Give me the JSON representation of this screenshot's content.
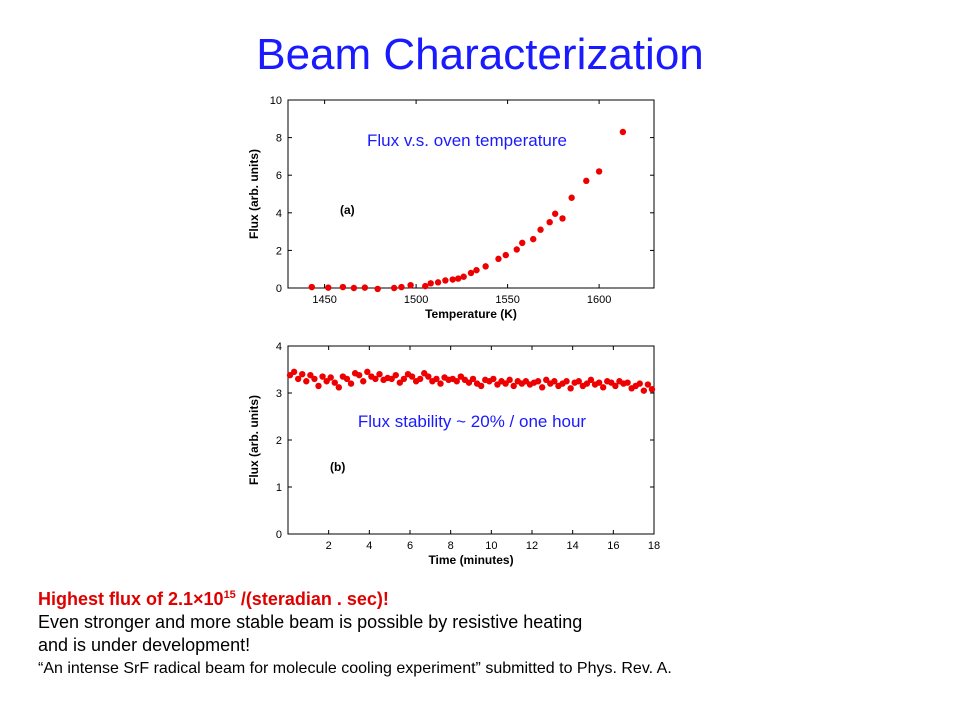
{
  "slide": {
    "title": "Beam Characterization"
  },
  "chart_data": [
    {
      "type": "scatter",
      "panel_label": "(a)",
      "annotation": "Flux v.s. oven temperature",
      "xlabel": "Temperature (K)",
      "ylabel": "Flux (arb. units)",
      "xlim": [
        1430,
        1630
      ],
      "ylim": [
        0,
        10
      ],
      "xticks": [
        1450,
        1500,
        1550,
        1600
      ],
      "yticks": [
        0,
        2,
        4,
        6,
        8,
        10
      ],
      "marker_color": "#ee0000",
      "points": [
        [
          1443,
          0.05
        ],
        [
          1452,
          0.02
        ],
        [
          1460,
          0.05
        ],
        [
          1466,
          0.0
        ],
        [
          1472,
          0.02
        ],
        [
          1479,
          -0.05
        ],
        [
          1488,
          0.0
        ],
        [
          1492,
          0.05
        ],
        [
          1497,
          0.15
        ],
        [
          1505,
          0.1
        ],
        [
          1508,
          0.25
        ],
        [
          1512,
          0.3
        ],
        [
          1516,
          0.4
        ],
        [
          1520,
          0.45
        ],
        [
          1523,
          0.5
        ],
        [
          1526,
          0.6
        ],
        [
          1530,
          0.8
        ],
        [
          1533,
          0.95
        ],
        [
          1538,
          1.15
        ],
        [
          1545,
          1.55
        ],
        [
          1549,
          1.75
        ],
        [
          1555,
          2.05
        ],
        [
          1558,
          2.4
        ],
        [
          1564,
          2.6
        ],
        [
          1568,
          3.1
        ],
        [
          1573,
          3.5
        ],
        [
          1576,
          3.95
        ],
        [
          1580,
          3.7
        ],
        [
          1585,
          4.8
        ],
        [
          1593,
          5.7
        ],
        [
          1600,
          6.2
        ],
        [
          1613,
          8.3
        ]
      ]
    },
    {
      "type": "scatter",
      "panel_label": "(b)",
      "annotation": "Flux stability ~ 20% / one hour",
      "xlabel": "Time (minutes)",
      "ylabel": "Flux (arb. units)",
      "xlim": [
        0,
        18
      ],
      "ylim": [
        0,
        4
      ],
      "xticks": [
        2,
        4,
        6,
        8,
        10,
        12,
        14,
        16,
        18
      ],
      "yticks": [
        0,
        1,
        2,
        3,
        4
      ],
      "marker_color": "#ee0000",
      "points": [
        [
          0.1,
          3.38
        ],
        [
          0.3,
          3.45
        ],
        [
          0.5,
          3.3
        ],
        [
          0.7,
          3.4
        ],
        [
          0.9,
          3.25
        ],
        [
          1.1,
          3.38
        ],
        [
          1.3,
          3.3
        ],
        [
          1.5,
          3.15
        ],
        [
          1.7,
          3.35
        ],
        [
          1.9,
          3.25
        ],
        [
          2.1,
          3.33
        ],
        [
          2.3,
          3.22
        ],
        [
          2.5,
          3.12
        ],
        [
          2.7,
          3.35
        ],
        [
          2.9,
          3.3
        ],
        [
          3.1,
          3.2
        ],
        [
          3.3,
          3.42
        ],
        [
          3.5,
          3.38
        ],
        [
          3.7,
          3.25
        ],
        [
          3.9,
          3.45
        ],
        [
          4.1,
          3.35
        ],
        [
          4.3,
          3.3
        ],
        [
          4.5,
          3.4
        ],
        [
          4.7,
          3.28
        ],
        [
          4.9,
          3.32
        ],
        [
          5.1,
          3.3
        ],
        [
          5.3,
          3.38
        ],
        [
          5.5,
          3.22
        ],
        [
          5.7,
          3.3
        ],
        [
          5.9,
          3.4
        ],
        [
          6.1,
          3.35
        ],
        [
          6.3,
          3.25
        ],
        [
          6.5,
          3.3
        ],
        [
          6.7,
          3.42
        ],
        [
          6.9,
          3.35
        ],
        [
          7.1,
          3.25
        ],
        [
          7.3,
          3.3
        ],
        [
          7.5,
          3.2
        ],
        [
          7.7,
          3.33
        ],
        [
          7.9,
          3.28
        ],
        [
          8.1,
          3.3
        ],
        [
          8.3,
          3.25
        ],
        [
          8.5,
          3.35
        ],
        [
          8.7,
          3.28
        ],
        [
          8.9,
          3.22
        ],
        [
          9.1,
          3.3
        ],
        [
          9.3,
          3.2
        ],
        [
          9.5,
          3.15
        ],
        [
          9.7,
          3.28
        ],
        [
          9.9,
          3.25
        ],
        [
          10.1,
          3.3
        ],
        [
          10.3,
          3.18
        ],
        [
          10.5,
          3.25
        ],
        [
          10.7,
          3.2
        ],
        [
          10.9,
          3.28
        ],
        [
          11.1,
          3.15
        ],
        [
          11.3,
          3.25
        ],
        [
          11.5,
          3.2
        ],
        [
          11.7,
          3.25
        ],
        [
          11.9,
          3.18
        ],
        [
          12.1,
          3.22
        ],
        [
          12.3,
          3.25
        ],
        [
          12.5,
          3.12
        ],
        [
          12.7,
          3.28
        ],
        [
          12.9,
          3.2
        ],
        [
          13.1,
          3.25
        ],
        [
          13.3,
          3.15
        ],
        [
          13.5,
          3.2
        ],
        [
          13.7,
          3.25
        ],
        [
          13.9,
          3.1
        ],
        [
          14.1,
          3.22
        ],
        [
          14.3,
          3.25
        ],
        [
          14.5,
          3.15
        ],
        [
          14.7,
          3.2
        ],
        [
          14.9,
          3.28
        ],
        [
          15.1,
          3.18
        ],
        [
          15.3,
          3.22
        ],
        [
          15.5,
          3.12
        ],
        [
          15.7,
          3.25
        ],
        [
          15.9,
          3.22
        ],
        [
          16.1,
          3.15
        ],
        [
          16.3,
          3.25
        ],
        [
          16.5,
          3.2
        ],
        [
          16.7,
          3.22
        ],
        [
          16.9,
          3.1
        ],
        [
          17.1,
          3.15
        ],
        [
          17.3,
          3.2
        ],
        [
          17.5,
          3.05
        ],
        [
          17.7,
          3.18
        ],
        [
          17.9,
          3.08
        ]
      ]
    }
  ],
  "footer": {
    "line1_pre": "Highest flux of 2.1×10",
    "line1_exp": "15",
    "line1_post": " /(steradian . sec)!",
    "line2": "Even stronger and more stable beam is possible by resistive heating",
    "line3": "and is under development!",
    "line4": "“An intense SrF radical beam for molecule cooling experiment” submitted to Phys. Rev. A."
  }
}
